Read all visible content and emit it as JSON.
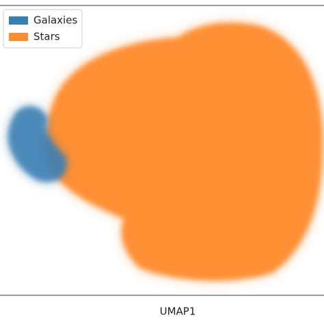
{
  "chart_data": {
    "type": "scatter",
    "xlabel": "UMAP1",
    "series": [
      {
        "name": "Galaxies",
        "color": "#3a7fb4"
      },
      {
        "name": "Stars",
        "color": "#ff8c2e"
      }
    ],
    "legend": "upper left"
  }
}
